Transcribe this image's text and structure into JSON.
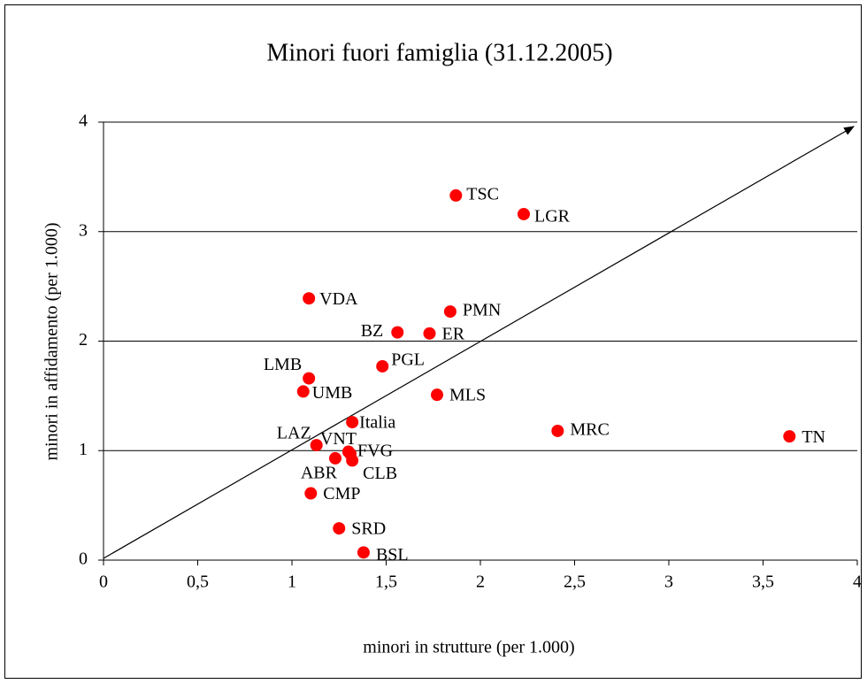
{
  "chart_data": {
    "type": "scatter",
    "title": "Minori fuori famiglia (31.12.2005)",
    "x_label": "minori in strutture (per 1.000)",
    "y_label": "minori in affidamento (per 1.000)",
    "xlim": [
      0,
      4
    ],
    "ylim": [
      0,
      4
    ],
    "xticks": [
      0,
      {
        "value": 0.5,
        "label": "0,5"
      },
      1,
      {
        "value": 1.5,
        "label": "1,5"
      },
      2,
      {
        "value": 2.5,
        "label": "2,5"
      },
      3,
      {
        "value": 3.5,
        "label": "3,5"
      },
      4
    ],
    "yticks": [
      0,
      1,
      2,
      3,
      4
    ],
    "grid": true,
    "color": "#ff0000",
    "labels": [
      "TSC",
      "LGR",
      "VDA",
      "PMN",
      "BZ",
      "ER",
      "PGL",
      "LMB",
      "UMB",
      "MLS",
      "Italia",
      "MRC",
      "TN",
      "LAZ",
      "VNT",
      "FVG",
      "ABR",
      "CLB",
      "CMP",
      "SRD",
      "BSL"
    ],
    "x": [
      1.87,
      2.23,
      1.09,
      1.84,
      1.56,
      1.73,
      1.48,
      1.09,
      1.06,
      1.77,
      1.32,
      2.41,
      3.64,
      1.13,
      1.3,
      1.31,
      1.23,
      1.32,
      1.1,
      1.25,
      1.38
    ],
    "y": [
      3.33,
      3.16,
      2.39,
      2.27,
      2.08,
      2.07,
      1.77,
      1.66,
      1.54,
      1.51,
      1.26,
      1.18,
      1.13,
      1.05,
      0.99,
      0.97,
      0.93,
      0.91,
      0.61,
      0.29,
      0.07
    ]
  }
}
